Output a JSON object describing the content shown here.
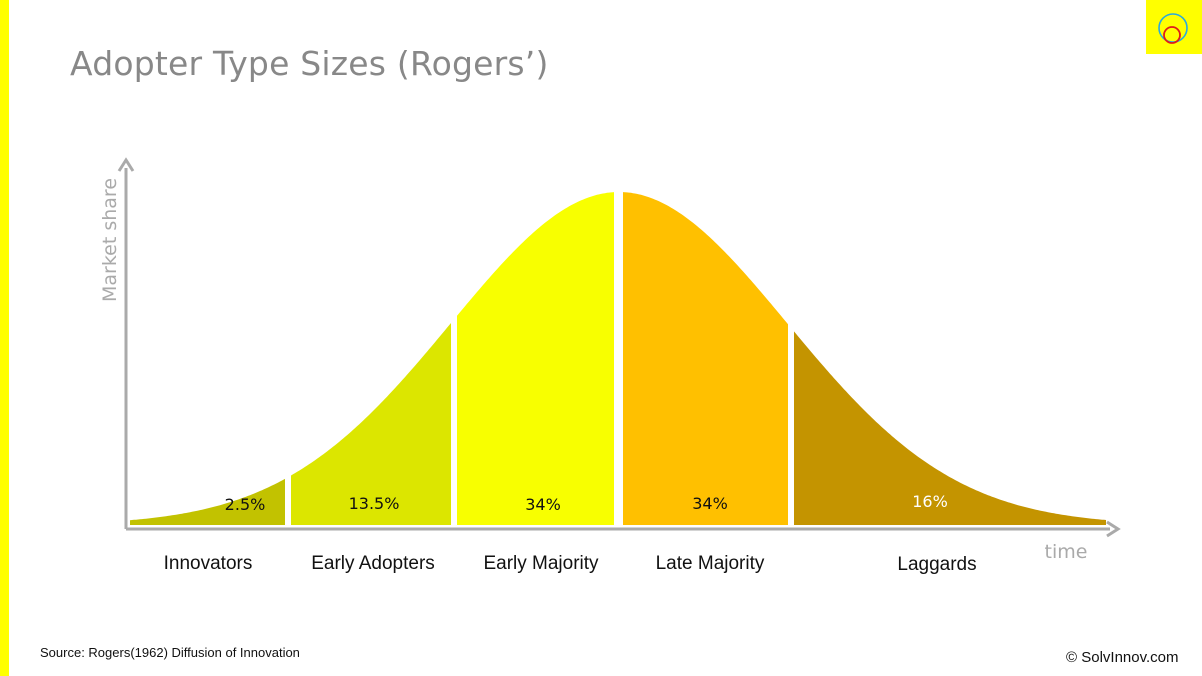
{
  "slide": {
    "title": "Adopter Type Sizes (Rogers’)",
    "source": "Source: Rogers(1962) Diffusion of Innovation",
    "copyright": "© SolvInnov.com"
  },
  "colors": {
    "accent_yellow": "#ffff00",
    "axis": "#aaaaaa",
    "title_text": "#888888"
  },
  "chart_data": {
    "type": "area",
    "title": "",
    "xlabel": "time",
    "ylabel": "Market share",
    "grid": false,
    "legend": "none",
    "categories": [
      "Innovators",
      "Early Adopters",
      "Early Majority",
      "Late Majority",
      "Laggards"
    ],
    "values": [
      2.5,
      13.5,
      34,
      34,
      16
    ],
    "value_labels": [
      "2.5%",
      "13.5%",
      "34%",
      "34%",
      "16%"
    ],
    "colors": [
      "#c2c200",
      "#dce600",
      "#f8ff00",
      "#ffc000",
      "#c49400"
    ]
  }
}
